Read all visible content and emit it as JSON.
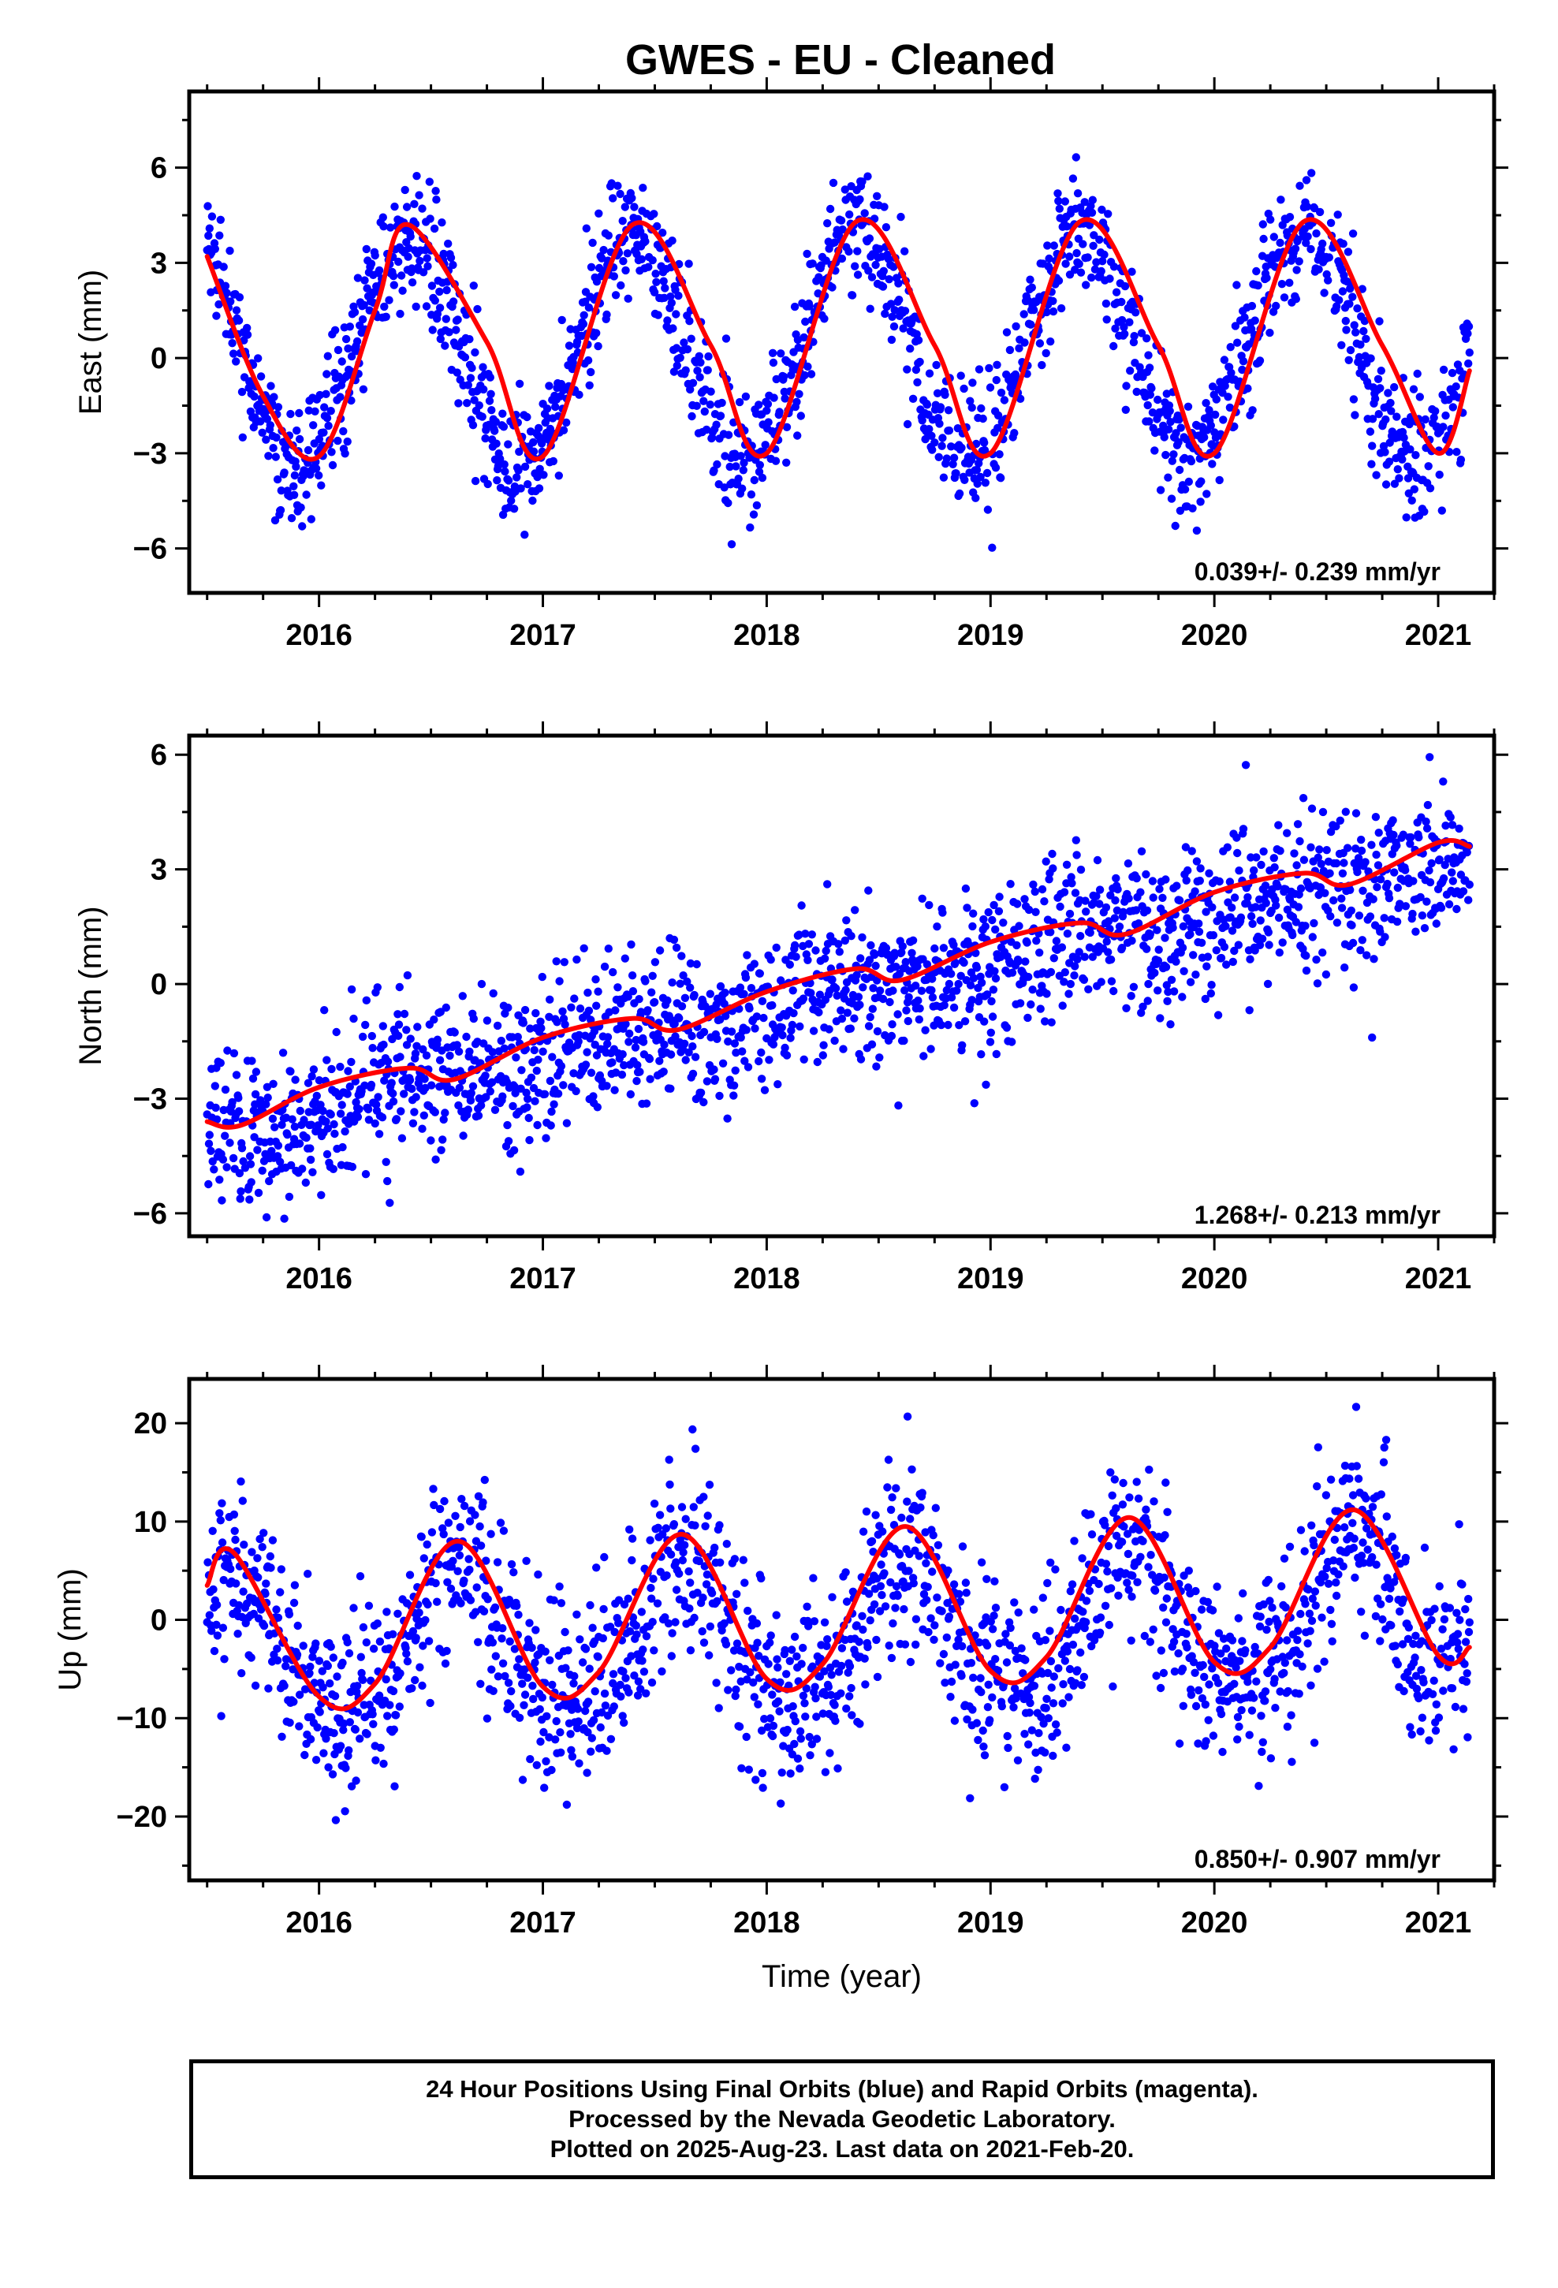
{
  "title": "GWES  - EU - Cleaned",
  "footer": {
    "line1": "24 Hour Positions Using Final Orbits (blue) and Rapid Orbits (magenta).",
    "line2": "Processed by the Nevada Geodetic Laboratory.",
    "line3": "Plotted on 2025-Aug-23. Last data on 2021-Feb-20."
  },
  "colors": {
    "points": "#0000ff",
    "fit": "#ff0000",
    "frame": "#000000"
  },
  "chart_data": [
    {
      "type": "scatter",
      "ylabel": "East (mm)",
      "xlabel": "",
      "xlim": [
        2015.42,
        2021.25
      ],
      "ylim": [
        -7.4,
        8.4
      ],
      "x_ticks": [
        2016,
        2017,
        2018,
        2019,
        2020,
        2021
      ],
      "x_tick_labels": [
        "2016",
        "2017",
        "2018",
        "2019",
        "2020",
        "2021"
      ],
      "y_ticks": [
        -6,
        -3,
        0,
        3,
        6
      ],
      "y_tick_labels": [
        "−6",
        "−3",
        "0",
        "3",
        "6"
      ],
      "rate_label": "0.039+/- 0.239 mm/yr",
      "grid": false,
      "model": {
        "start": 2015.5,
        "end": 2021.14,
        "offset": 0.35,
        "rate": 0.039,
        "annual_amp": 3.65,
        "annual_peak": 2015.4,
        "semi_amp": 0.0,
        "semi_peak": 2015.4,
        "noise": 1.05
      },
      "series": [
        {
          "name": "fit",
          "x": [
            2015.5,
            2015.75,
            2016.0,
            2016.25,
            2016.4,
            2016.75,
            2017.0,
            2017.4,
            2017.75,
            2018.0,
            2018.4,
            2018.75,
            2019.0,
            2019.4,
            2019.75,
            2020.0,
            2020.4,
            2020.75,
            2021.0,
            2021.14
          ],
          "y": [
            3.2,
            -1.2,
            -3.1,
            1.5,
            4.2,
            0.5,
            -3.1,
            4.2,
            0.4,
            -3.0,
            4.3,
            0.4,
            -3.0,
            4.3,
            0.4,
            -3.0,
            4.3,
            0.4,
            -3.0,
            -0.4
          ]
        }
      ]
    },
    {
      "type": "scatter",
      "ylabel": "North (mm)",
      "xlabel": "",
      "xlim": [
        2015.42,
        2021.25
      ],
      "ylim": [
        -6.6,
        6.5
      ],
      "x_ticks": [
        2016,
        2017,
        2018,
        2019,
        2020,
        2021
      ],
      "x_tick_labels": [
        "2016",
        "2017",
        "2018",
        "2019",
        "2020",
        "2021"
      ],
      "y_ticks": [
        -6,
        -3,
        0,
        3,
        6
      ],
      "y_tick_labels": [
        "−6",
        "−3",
        "0",
        "3",
        "6"
      ],
      "rate_label": "1.268+/- 0.213 mm/yr",
      "grid": false,
      "model": {
        "start": 2015.5,
        "end": 2021.14,
        "offset": -0.3,
        "rate": 1.268,
        "annual_amp": 0.3,
        "annual_peak": 2015.35,
        "semi_amp": 0.0,
        "semi_peak": 2015.35,
        "noise": 1.0
      },
      "series": [
        {
          "name": "fit",
          "x": [
            2015.5,
            2015.65,
            2016.0,
            2016.4,
            2016.6,
            2017.0,
            2017.4,
            2017.6,
            2018.0,
            2018.4,
            2018.6,
            2019.0,
            2019.4,
            2019.6,
            2020.0,
            2020.4,
            2020.6,
            2021.0,
            2021.14
          ],
          "y": [
            -3.6,
            -3.7,
            -2.7,
            -2.2,
            -2.5,
            -1.4,
            -0.9,
            -1.2,
            -0.2,
            0.4,
            0.1,
            1.1,
            1.6,
            1.3,
            2.4,
            2.9,
            2.6,
            3.7,
            3.6
          ]
        }
      ]
    },
    {
      "type": "scatter",
      "ylabel": "Up (mm)",
      "xlabel": "Time (year)",
      "xlim": [
        2015.42,
        2021.25
      ],
      "ylim": [
        -26.5,
        24.5
      ],
      "x_ticks": [
        2016,
        2017,
        2018,
        2019,
        2020,
        2021
      ],
      "x_tick_labels": [
        "2016",
        "2017",
        "2018",
        "2019",
        "2020",
        "2021"
      ],
      "y_ticks": [
        -20,
        -10,
        0,
        10,
        20
      ],
      "y_tick_labels": [
        "−20",
        "−10",
        "0",
        "10",
        "20"
      ],
      "rate_label": "0.850+/- 0.907 mm/yr",
      "grid": false,
      "model": {
        "start": 2015.5,
        "end": 2021.14,
        "offset": -1.2,
        "rate": 0.85,
        "annual_amp": 7.0,
        "annual_peak": 2015.62,
        "semi_amp": 1.5,
        "semi_peak": 2015.62,
        "noise": 4.6
      },
      "series": [
        {
          "name": "fit",
          "x": [
            2015.5,
            2015.62,
            2016.0,
            2016.25,
            2016.62,
            2017.0,
            2017.25,
            2017.62,
            2018.0,
            2018.25,
            2018.62,
            2019.0,
            2019.25,
            2019.62,
            2020.0,
            2020.25,
            2020.62,
            2021.0,
            2021.14
          ],
          "y": [
            3.5,
            6.8,
            -7.8,
            -6.5,
            8.0,
            -6.8,
            -5.3,
            8.7,
            -6.0,
            -4.5,
            9.5,
            -5.2,
            -3.8,
            10.4,
            -4.3,
            -2.8,
            11.2,
            -3.6,
            -2.8
          ]
        }
      ]
    }
  ]
}
